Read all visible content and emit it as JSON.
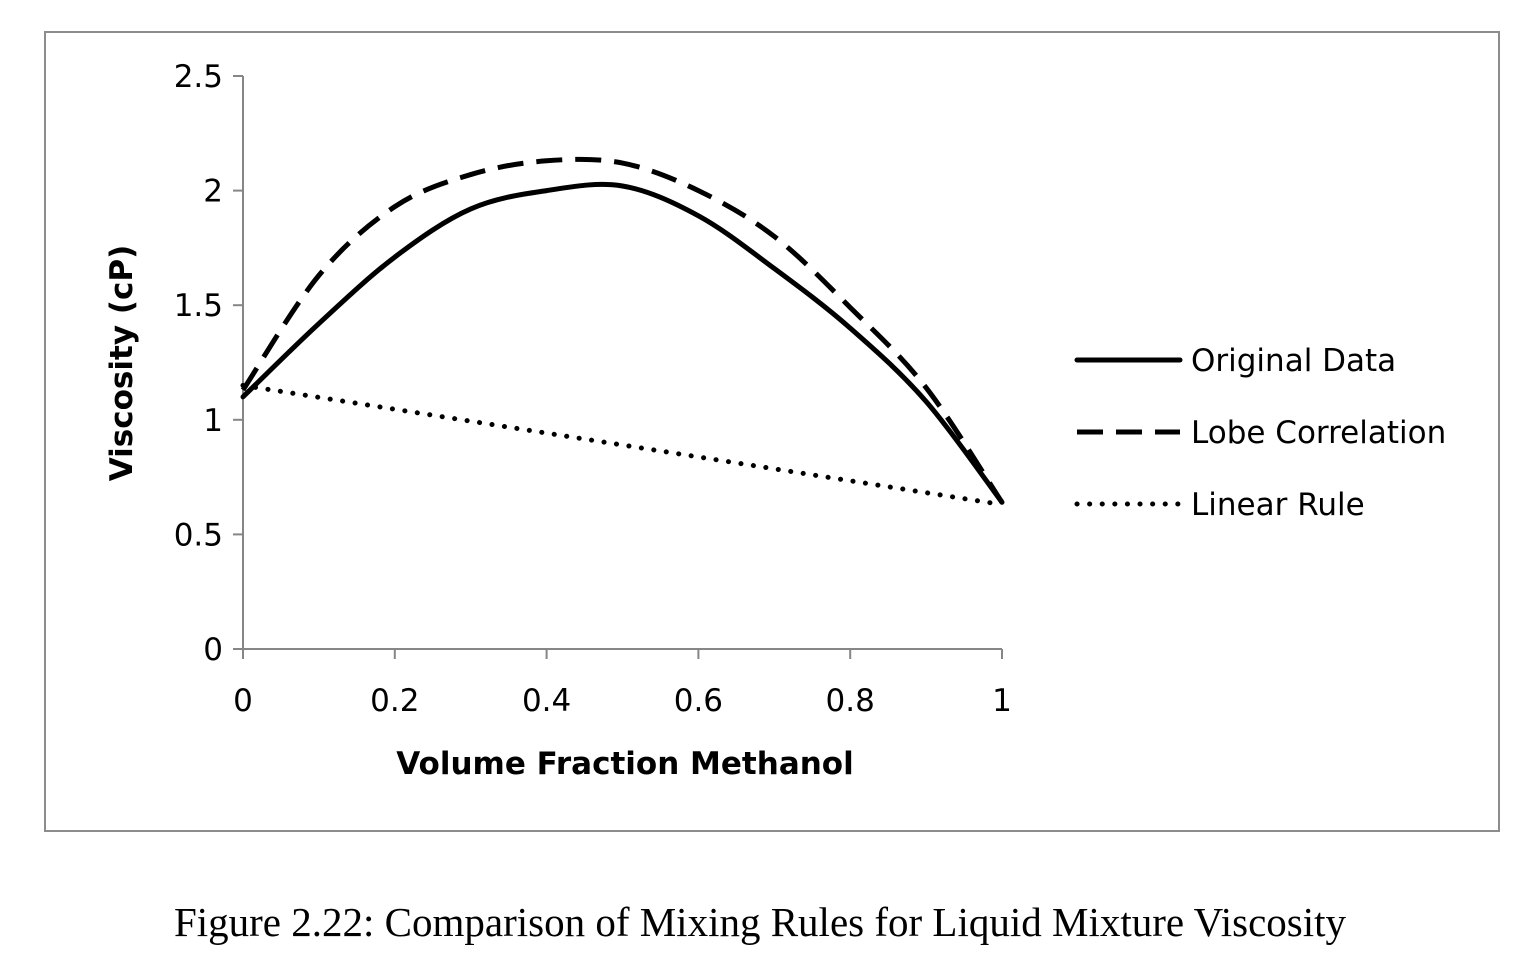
{
  "caption": "Figure 2.22: Comparison of Mixing Rules for Liquid Mixture Viscosity",
  "chart_data": {
    "type": "line",
    "title": "",
    "xlabel": "Volume Fraction Methanol",
    "ylabel": "Viscosity (cP)",
    "xlim": [
      0,
      1
    ],
    "ylim": [
      0,
      2.5
    ],
    "x_ticks": [
      0,
      0.2,
      0.4,
      0.6,
      0.8,
      1
    ],
    "x_tick_labels": [
      "0",
      "0.2",
      "0.4",
      "0.6",
      "0.8",
      "1"
    ],
    "y_ticks": [
      0,
      0.5,
      1,
      1.5,
      2,
      2.5
    ],
    "y_tick_labels": [
      "0",
      "0.5",
      "1",
      "1.5",
      "2",
      "2.5"
    ],
    "grid": false,
    "legend_position": "right",
    "series": [
      {
        "name": "Original Data",
        "style": "solid",
        "color": "#000000",
        "x": [
          0,
          0.1,
          0.2,
          0.3,
          0.4,
          0.5,
          0.6,
          0.7,
          0.8,
          0.9,
          1.0
        ],
        "y": [
          1.1,
          1.42,
          1.71,
          1.92,
          2.0,
          2.02,
          1.89,
          1.66,
          1.4,
          1.08,
          0.64
        ]
      },
      {
        "name": "Lobe Correlation",
        "style": "dashed",
        "color": "#000000",
        "x": [
          0,
          0.1,
          0.2,
          0.3,
          0.4,
          0.5,
          0.6,
          0.7,
          0.8,
          0.9,
          1.0
        ],
        "y": [
          1.13,
          1.63,
          1.93,
          2.07,
          2.13,
          2.12,
          2.0,
          1.8,
          1.49,
          1.14,
          0.64
        ]
      },
      {
        "name": "Linear Rule",
        "style": "dotted",
        "color": "#000000",
        "x": [
          0,
          1.0
        ],
        "y": [
          1.15,
          0.63
        ]
      }
    ]
  }
}
